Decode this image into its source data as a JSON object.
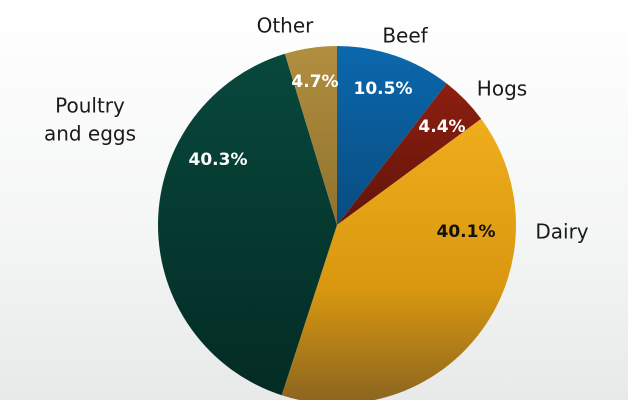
{
  "chart_data": {
    "type": "pie",
    "title": "",
    "legend": "none",
    "slices": [
      {
        "label": "Beef",
        "value": 10.5,
        "value_label": "10.5%",
        "color": "#0a5a96",
        "label_color": "#ffffff"
      },
      {
        "label": "Hogs",
        "value": 4.4,
        "value_label": "4.4%",
        "color": "#7a1a0c",
        "label_color": "#ffffff"
      },
      {
        "label": "Dairy",
        "value": 40.1,
        "value_label": "40.1%",
        "color": "#e3a01e",
        "label_color": "#111111"
      },
      {
        "label": "Poultry and eggs",
        "label_lines": [
          "Poultry",
          "and eggs"
        ],
        "value": 40.3,
        "value_label": "40.3%",
        "color": "#053d33",
        "label_color": "#ffffff"
      },
      {
        "label": "Other",
        "value": 4.7,
        "value_label": "4.7%",
        "color": "#a88738",
        "label_color": "#ffffff"
      }
    ]
  }
}
